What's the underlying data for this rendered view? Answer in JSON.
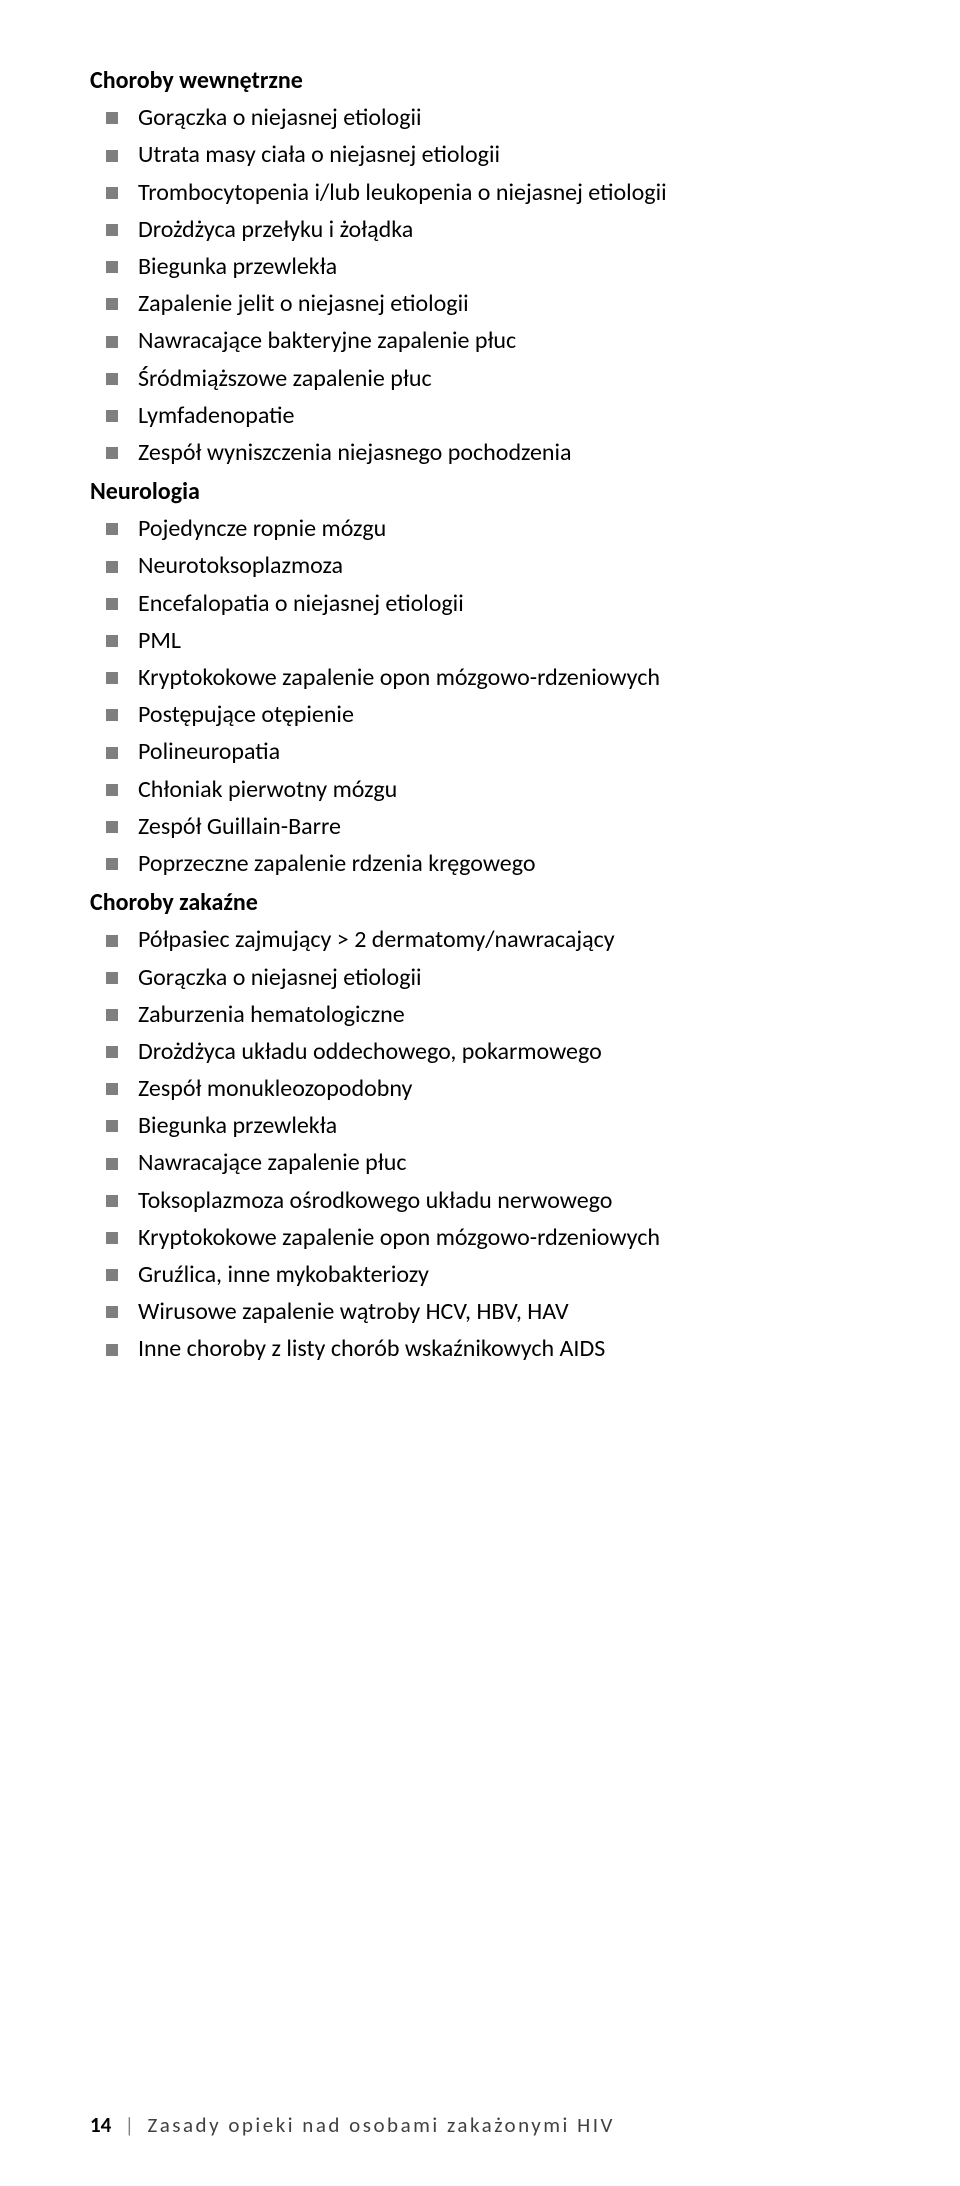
{
  "sections": [
    {
      "heading": "Choroby wewnętrzne",
      "items": [
        "Gorączka o niejasnej etiologii",
        "Utrata masy ciała o niejasnej etiologii",
        "Trombocytopenia i/lub leukopenia o niejasnej etiologii",
        "Drożdżyca przełyku i żołądka",
        "Biegunka przewlekła",
        "Zapalenie jelit o niejasnej etiologii",
        "Nawracające bakteryjne zapalenie płuc",
        "Śródmiąższowe zapalenie płuc",
        "Lymfadenopatie",
        "Zespół wyniszczenia niejasnego pochodzenia"
      ]
    },
    {
      "heading": "Neurologia",
      "items": [
        "Pojedyncze ropnie mózgu",
        "Neurotoksoplazmoza",
        "Encefalopatia o niejasnej etiologii",
        "PML",
        "Kryptokokowe zapalenie opon mózgowo-rdzeniowych",
        "Postępujące otępienie",
        "Polineuropatia",
        "Chłoniak pierwotny mózgu",
        "Zespół Guillain-Barre",
        "Poprzeczne zapalenie rdzenia kręgowego"
      ]
    },
    {
      "heading": "Choroby zakaźne",
      "items": [
        "Półpasiec zajmujący > 2 dermatomy/nawracający",
        "Gorączka o niejasnej etiologii",
        "Zaburzenia hematologiczne",
        "Drożdżyca układu oddechowego, pokarmowego",
        "Zespół monukleozopodobny",
        "Biegunka przewlekła",
        "Nawracające zapalenie płuc",
        "Toksoplazmoza ośrodkowego układu nerwowego",
        "Kryptokokowe zapalenie opon mózgowo-rdzeniowych",
        "Gruźlica, inne mykobakteriozy",
        "Wirusowe zapalenie wątroby HCV, HBV, HAV",
        "Inne choroby z listy chorób wskaźnikowych AIDS"
      ]
    }
  ],
  "footer": {
    "page_number": "14",
    "separator": "|",
    "title": "Zasady opieki nad osobami zakażonymi HIV"
  },
  "style": {
    "bullet_color": "#7f7f7f",
    "text_color": "#000000",
    "footer_color": "#404040",
    "background": "#ffffff",
    "font_size_body": 24,
    "font_size_footer": 21
  }
}
